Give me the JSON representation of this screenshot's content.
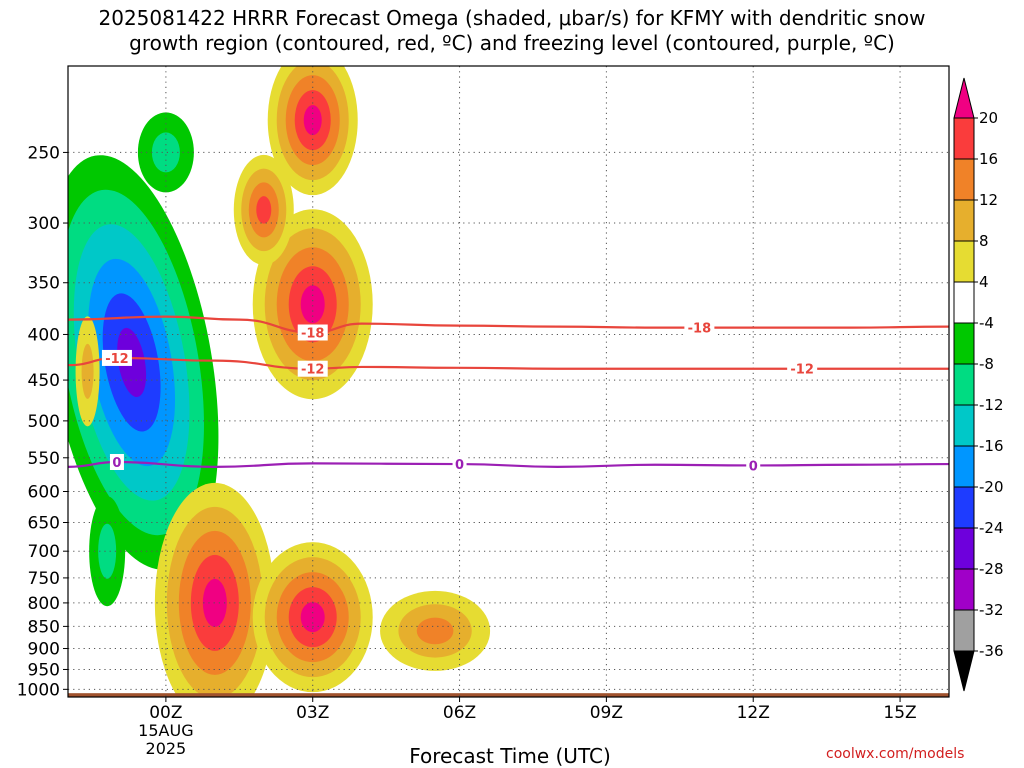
{
  "title": {
    "line1": "2025081422 HRRR Forecast Omega (shaded, μbar/s) for KFMY with dendritic snow",
    "line2": "growth region (contoured, red, ºC) and freezing level (contoured, purple, ºC)"
  },
  "watermark": "coolwx.com/models",
  "chart_data": {
    "type": "heatmap",
    "title": "2025081422 HRRR Forecast Omega (shaded, μbar/s) for KFMY with dendritic snow growth region (contoured, red, ºC) and freezing level (contoured, purple, ºC)",
    "xlabel": "Forecast Time (UTC)",
    "x_unit": "hours after 2025-08-14 22Z",
    "xlim": [
      0,
      18
    ],
    "x_ticks": [
      {
        "x": 2,
        "label": "00Z",
        "sub": [
          "15AUG",
          "2025"
        ]
      },
      {
        "x": 5,
        "label": "03Z"
      },
      {
        "x": 8,
        "label": "06Z"
      },
      {
        "x": 11,
        "label": "09Z"
      },
      {
        "x": 14,
        "label": "12Z"
      },
      {
        "x": 17,
        "label": "15Z"
      }
    ],
    "y_unit": "hPa",
    "ylim": [
      1020,
      200
    ],
    "y_scale": "log",
    "y_ticks": [
      250,
      300,
      350,
      400,
      450,
      500,
      550,
      600,
      650,
      700,
      750,
      800,
      850,
      900,
      950,
      1000
    ],
    "grid": "dotted",
    "colorbar": {
      "levels": [
        -36,
        -32,
        -28,
        -24,
        -20,
        -16,
        -12,
        -8,
        -4,
        4,
        8,
        12,
        16,
        20
      ],
      "colors": [
        "#000000",
        "#a0a0a0",
        "#a000c8",
        "#6e00dc",
        "#1e3cff",
        "#0096ff",
        "#00c8c8",
        "#00dc82",
        "#00c800",
        "#ffffff",
        "#e6dc32",
        "#e6af2d",
        "#f08228",
        "#fa3c3c",
        "#f00082"
      ]
    },
    "omega_features": [
      {
        "sign": "negative",
        "x": 1.3,
        "p": 430,
        "peak": -24
      },
      {
        "sign": "negative",
        "x": 0.8,
        "p": 700,
        "peak": -8
      },
      {
        "sign": "negative",
        "x": 2.0,
        "p": 250,
        "peak": -8
      },
      {
        "sign": "positive",
        "x": 5.0,
        "p": 230,
        "peak": 20
      },
      {
        "sign": "positive",
        "x": 5.0,
        "p": 370,
        "peak": 20
      },
      {
        "sign": "positive",
        "x": 3.0,
        "p": 800,
        "peak": 20
      },
      {
        "sign": "positive",
        "x": 5.0,
        "p": 830,
        "peak": 20
      },
      {
        "sign": "positive",
        "x": 7.5,
        "p": 860,
        "peak": 12
      },
      {
        "sign": "positive",
        "x": 4.0,
        "p": 290,
        "peak": 16
      },
      {
        "sign": "positive",
        "x": 0.4,
        "p": 440,
        "peak": 8
      }
    ],
    "contours": [
      {
        "name": "-18",
        "color": "#e8453c",
        "labels": [
          5.0,
          12.9
        ],
        "points": [
          [
            0,
            385
          ],
          [
            2,
            382
          ],
          [
            3.5,
            385
          ],
          [
            5,
            398
          ],
          [
            6,
            389
          ],
          [
            8,
            391
          ],
          [
            10,
            392
          ],
          [
            12,
            393
          ],
          [
            14,
            393
          ],
          [
            16,
            393
          ],
          [
            18,
            392
          ]
        ]
      },
      {
        "name": "-12",
        "color": "#e8453c",
        "labels": [
          1.0,
          5.0,
          15.0
        ],
        "points": [
          [
            0,
            433
          ],
          [
            1,
            425
          ],
          [
            3,
            428
          ],
          [
            5,
            437
          ],
          [
            6,
            435
          ],
          [
            8,
            436
          ],
          [
            10,
            437
          ],
          [
            12,
            437
          ],
          [
            14,
            437
          ],
          [
            16,
            437
          ],
          [
            18,
            437
          ]
        ]
      },
      {
        "name": "0",
        "color": "#9b1fb4",
        "labels": [
          1.0,
          8.0,
          14.0
        ],
        "points": [
          [
            0,
            563
          ],
          [
            1,
            556
          ],
          [
            3,
            563
          ],
          [
            5,
            558
          ],
          [
            8,
            559
          ],
          [
            10,
            563
          ],
          [
            12,
            560
          ],
          [
            14,
            561
          ],
          [
            16,
            560
          ],
          [
            18,
            559
          ]
        ]
      }
    ],
    "ground_level_hPa": 1010
  }
}
